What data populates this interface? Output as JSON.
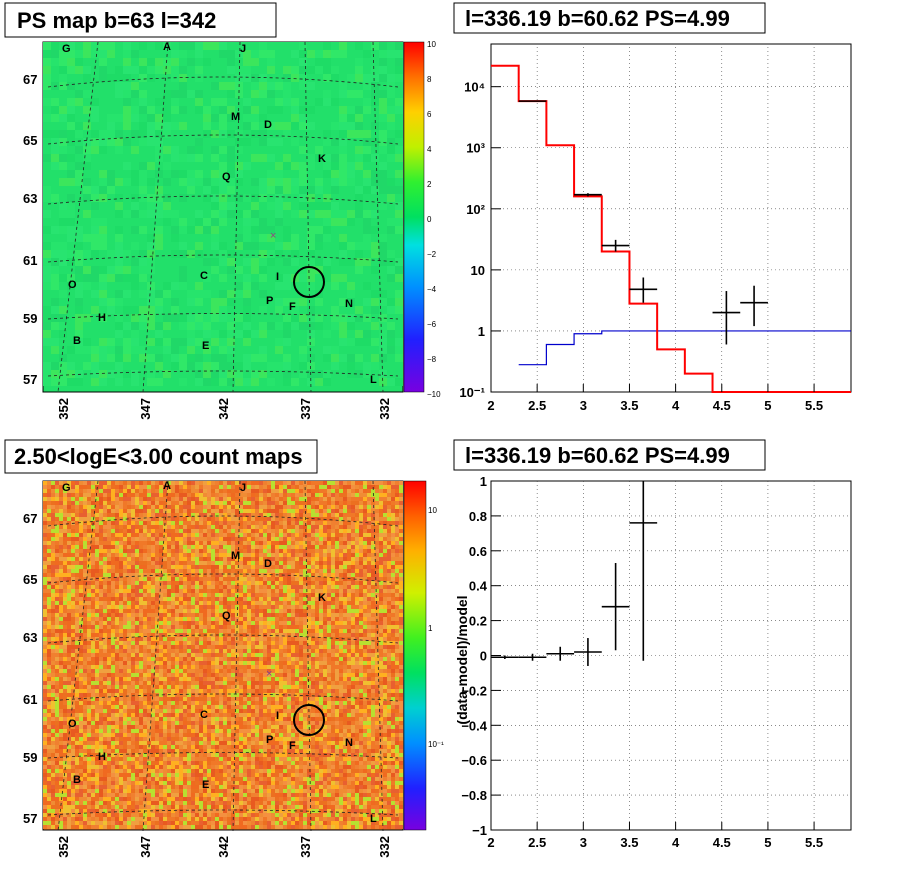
{
  "colors": {
    "map_green": "#22e06a",
    "model_red": "#ff0000",
    "background_blue": "#0000cc",
    "data_black": "#000000"
  },
  "panels": {
    "ps_map": {
      "title": "PS map b=63 l=342"
    },
    "spectrum": {
      "title": "l=336.19 b=60.62 PS=4.99"
    },
    "count_map": {
      "title": "2.50<logE<3.00 count maps"
    },
    "residual": {
      "title": "l=336.19 b=60.62 PS=4.99"
    }
  },
  "map_axes": {
    "lat_ticks": [
      "67",
      "65",
      "63",
      "61",
      "59",
      "57"
    ],
    "lon_ticks": [
      "352",
      "347",
      "342",
      "337",
      "332"
    ],
    "sources": [
      "G",
      "A",
      "J",
      "M",
      "D",
      "K",
      "Q",
      "C",
      "I",
      "O",
      "P",
      "F",
      "N",
      "H",
      "B",
      "E",
      "L"
    ]
  },
  "ps_palette": {
    "labels": [
      "10",
      "8",
      "6",
      "4",
      "2",
      "0",
      "−2",
      "−4",
      "−6",
      "−8",
      "−10"
    ]
  },
  "count_palette": {
    "labels": [
      "10",
      "1",
      "10⁻¹"
    ]
  },
  "chart_data": [
    {
      "type": "step",
      "panel": "spectrum",
      "title": "l=336.19 b=60.62 PS=4.99",
      "yscale": "log",
      "xlim": [
        2,
        5.9
      ],
      "ylim": [
        0.1,
        50000
      ],
      "x_ticks": [
        "2",
        "2.5",
        "3",
        "3.5",
        "4",
        "4.5",
        "5",
        "5.5"
      ],
      "y_ticks": [
        "10⁻¹",
        "1",
        "10",
        "10²",
        "10³",
        "10⁴"
      ],
      "grid": true,
      "series": [
        {
          "kind": "model-step",
          "color": "#ff0000",
          "edges": [
            2.0,
            2.3,
            2.6,
            2.9,
            3.2,
            3.5,
            3.8,
            4.1,
            4.4,
            4.7,
            5.0,
            5.3,
            5.6,
            5.9
          ],
          "values": [
            22000,
            5800,
            1100,
            160,
            20,
            2.8,
            0.5,
            0.2,
            0.1,
            0.1,
            0.1,
            0.1,
            0.1
          ]
        },
        {
          "kind": "background-step",
          "color": "#0000cc",
          "edges": [
            2.3,
            2.6,
            2.9,
            3.2,
            3.5,
            3.8,
            4.1,
            4.4,
            4.7,
            5.0,
            5.3,
            5.6,
            5.9
          ],
          "values": [
            0.28,
            0.6,
            0.9,
            1.0,
            1.0,
            1.0,
            1.0,
            1.0,
            1.0,
            1.0,
            1.0,
            1.0
          ]
        },
        {
          "kind": "data-points",
          "color": "#000000",
          "points": [
            {
              "x": 2.45,
              "y": 5800,
              "xerr": 0.15,
              "ylo": 5750,
              "yhi": 5850
            },
            {
              "x": 3.05,
              "y": 170,
              "xerr": 0.15,
              "ylo": 160,
              "yhi": 180
            },
            {
              "x": 3.35,
              "y": 25,
              "xerr": 0.15,
              "ylo": 20,
              "yhi": 31
            },
            {
              "x": 3.65,
              "y": 4.8,
              "xerr": 0.15,
              "ylo": 2.9,
              "yhi": 7.5
            },
            {
              "x": 4.55,
              "y": 2.0,
              "xerr": 0.15,
              "ylo": 0.6,
              "yhi": 4.5
            },
            {
              "x": 4.85,
              "y": 2.9,
              "xerr": 0.15,
              "ylo": 1.2,
              "yhi": 5.5
            }
          ]
        }
      ]
    },
    {
      "type": "scatter",
      "panel": "residual",
      "title": "l=336.19 b=60.62 PS=4.99",
      "ylabel": "(data-model)/model",
      "xlim": [
        2,
        5.9
      ],
      "ylim": [
        -1,
        1
      ],
      "x_ticks": [
        "2",
        "2.5",
        "3",
        "3.5",
        "4",
        "4.5",
        "5",
        "5.5"
      ],
      "y_ticks": [
        "1",
        "0.8",
        "0.6",
        "0.4",
        "0.2",
        "0",
        "−0.2",
        "−0.4",
        "−0.6",
        "−0.8",
        "−1"
      ],
      "grid": true,
      "points": [
        {
          "x": 2.15,
          "y": -0.01,
          "xerr": 0.15,
          "yerr": 0.01
        },
        {
          "x": 2.45,
          "y": -0.01,
          "xerr": 0.15,
          "yerr": 0.02
        },
        {
          "x": 2.75,
          "y": 0.01,
          "xerr": 0.15,
          "yerr": 0.04
        },
        {
          "x": 3.05,
          "y": 0.02,
          "xerr": 0.15,
          "yerr": 0.08
        },
        {
          "x": 3.35,
          "y": 0.28,
          "xerr": 0.15,
          "ylo": 0.03,
          "yhi": 0.53
        },
        {
          "x": 3.65,
          "y": 0.76,
          "xerr": 0.15,
          "ylo": -0.03,
          "yhi": 1.0
        }
      ]
    }
  ]
}
